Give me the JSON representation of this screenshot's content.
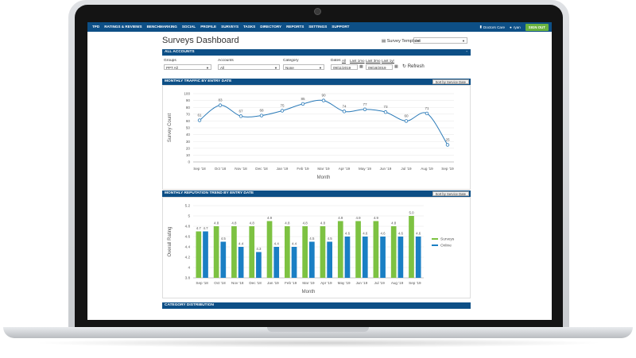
{
  "nav": {
    "items": [
      "TPD",
      "RATINGS & REVIEWS",
      "BENCHMARKING",
      "SOCIAL",
      "PROFILE",
      "SURVEYS",
      "TASKS",
      "DIRECTORY",
      "REPORTS",
      "SETTINGS",
      "SUPPORT"
    ],
    "org": "Doctors Care",
    "user": "ryan",
    "signout": "SIGN OUT"
  },
  "page": {
    "title": "Surveys Dashboard",
    "template_label": "Survey Template",
    "template_value": "All"
  },
  "accounts_panel": {
    "header": "ALL ACCOUNTS",
    "collapse": "-",
    "groups_label": "Groups",
    "groups_value": "PPT All",
    "accounts_label": "Accounts",
    "accounts_value": "All",
    "category_label": "Category",
    "category_value": "None",
    "dates_label": "Dates",
    "date_links": [
      "All",
      "Last 1mo",
      "Last 3mo",
      "Last 1yr"
    ],
    "date_from": "09/11/2019",
    "date_to": "09/18/2019",
    "refresh": "Refresh"
  },
  "traffic_panel": {
    "header": "MONTHLY TRAFFIC BY ENTRY DATE",
    "sort": "Sort by Service Date"
  },
  "reputation_panel": {
    "header": "MONTHLY REPUTATION TREND BY ENTRY DATE",
    "sort": "Sort by Service Date"
  },
  "category_panel": {
    "header": "CATEGORY DISTRIBUTION"
  },
  "colors": {
    "nav": "#0d4f86",
    "line": "#2a7ab8",
    "surveys": "#7dc242",
    "online": "#1a7fc4",
    "signout": "#6ab33f"
  },
  "chart_data": [
    {
      "type": "line",
      "categories": [
        "Sep '18",
        "Oct '18",
        "Nov '18",
        "Dec '18",
        "Jan '19",
        "Feb '19",
        "Mar '19",
        "Apr '19",
        "May '19",
        "Jun '19",
        "Jul '19",
        "Aug '19",
        "Sep '19"
      ],
      "values": [
        61,
        83,
        67,
        68,
        75,
        85,
        90,
        74,
        77,
        73,
        60,
        71,
        25
      ],
      "ylabel": "Survey Count",
      "xlabel": "Month",
      "ylim": [
        0,
        100
      ],
      "yticks": [
        0,
        10,
        20,
        30,
        40,
        50,
        60,
        70,
        80,
        90,
        100
      ]
    },
    {
      "type": "bar",
      "categories": [
        "Sep '18",
        "Oct '18",
        "Nov '18",
        "Dec '18",
        "Jan '19",
        "Feb '19",
        "Mar '19",
        "Apr '19",
        "May '19",
        "Jun '19",
        "Jul '19",
        "Aug '19",
        "Sep '19"
      ],
      "series": [
        {
          "name": "Surveys",
          "values": [
            4.7,
            4.8,
            4.8,
            4.8,
            4.9,
            4.8,
            4.8,
            4.8,
            4.9,
            4.9,
            4.9,
            4.8,
            5.0
          ]
        },
        {
          "name": "Online",
          "values": [
            4.7,
            4.5,
            4.4,
            4.3,
            4.4,
            4.4,
            4.5,
            4.5,
            4.6,
            4.6,
            4.6,
            4.6,
            4.6
          ]
        }
      ],
      "ylabel": "Overall Rating",
      "xlabel": "Month",
      "ylim": [
        3.8,
        5.2
      ],
      "yticks": [
        3.8,
        4.0,
        4.2,
        4.4,
        4.6,
        4.8,
        5.0,
        5.2
      ],
      "legend": "right"
    }
  ]
}
